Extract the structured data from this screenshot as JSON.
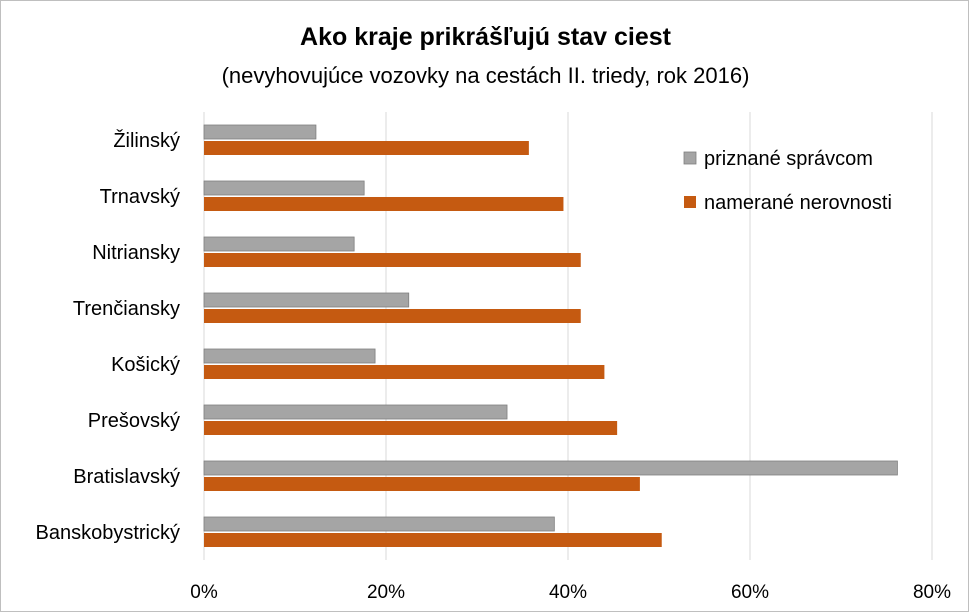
{
  "chart_data": {
    "type": "bar",
    "orientation": "horizontal",
    "title": "Ako kraje prikrášľujú stav ciest",
    "subtitle": "(nevyhovujúce  vozovky na cestách II. triedy, rok 2016)",
    "categories": [
      "Žilinský",
      "Trnavský",
      "Nitriansky",
      "Trenčiansky",
      "Košický",
      "Prešovský",
      "Bratislavský",
      "Banskobystrický"
    ],
    "series": [
      {
        "name": "priznané správcom",
        "color": "#a5a5a5",
        "values": [
          12.3,
          17.6,
          16.5,
          22.5,
          18.8,
          33.3,
          76.2,
          38.5
        ]
      },
      {
        "name": "namerané nerovnosti",
        "color": "#c55a11",
        "values": [
          35.7,
          39.5,
          41.4,
          41.4,
          44.0,
          45.4,
          47.9,
          50.3
        ]
      }
    ],
    "xlim": [
      0,
      80
    ],
    "xticks": [
      0,
      20,
      40,
      60,
      80
    ],
    "tick_suffix": "%",
    "xlabel": "",
    "ylabel": "",
    "grid": true,
    "legend_position": "top-right"
  }
}
